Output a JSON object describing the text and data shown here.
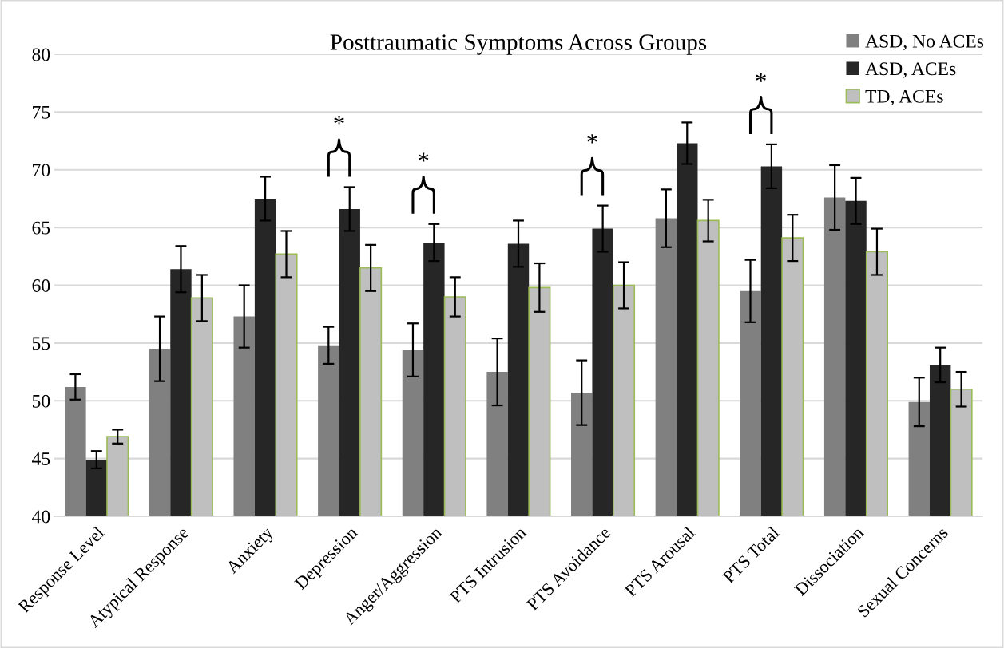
{
  "chart_data": {
    "type": "bar",
    "title": "Posttraumatic Symptoms Across Groups",
    "categories": [
      "Response Level",
      "Atypical Response",
      "Anxiety",
      "Depression",
      "Anger/Aggression",
      "PTS Intrusion",
      "PTS Avoidance",
      "PTS Arousal",
      "PTS Total",
      "Dissociation",
      "Sexual Concerns"
    ],
    "series": [
      {
        "name": "ASD, No ACEs",
        "color": "#808080",
        "values": [
          51.2,
          54.5,
          57.3,
          54.8,
          54.4,
          52.5,
          50.7,
          65.8,
          59.5,
          67.6,
          49.9
        ],
        "errors": [
          1.1,
          2.8,
          2.7,
          1.6,
          2.3,
          2.9,
          2.8,
          2.5,
          2.7,
          2.8,
          2.1
        ]
      },
      {
        "name": "ASD, ACEs",
        "color": "#262626",
        "values": [
          44.9,
          61.4,
          67.5,
          66.6,
          63.7,
          63.6,
          64.9,
          72.3,
          70.3,
          67.3,
          53.1
        ],
        "errors": [
          0.75,
          2.0,
          1.9,
          1.9,
          1.6,
          2.0,
          2.0,
          1.8,
          1.9,
          2.0,
          1.5
        ]
      },
      {
        "name": "TD, ACEs",
        "color": "#bfbfbf",
        "values": [
          46.9,
          58.9,
          62.7,
          61.5,
          59.0,
          59.8,
          60.0,
          65.6,
          64.1,
          62.9,
          51.0
        ],
        "errors": [
          0.6,
          2.0,
          2.0,
          2.0,
          1.7,
          2.1,
          2.0,
          1.8,
          2.0,
          2.0,
          1.5
        ]
      }
    ],
    "ylim": [
      40,
      80
    ],
    "yticks": [
      40,
      45,
      50,
      55,
      60,
      65,
      70,
      75,
      80
    ],
    "grid": "y",
    "legend": "top right",
    "annotations": [
      "*",
      "*",
      "*",
      "*"
    ]
  }
}
